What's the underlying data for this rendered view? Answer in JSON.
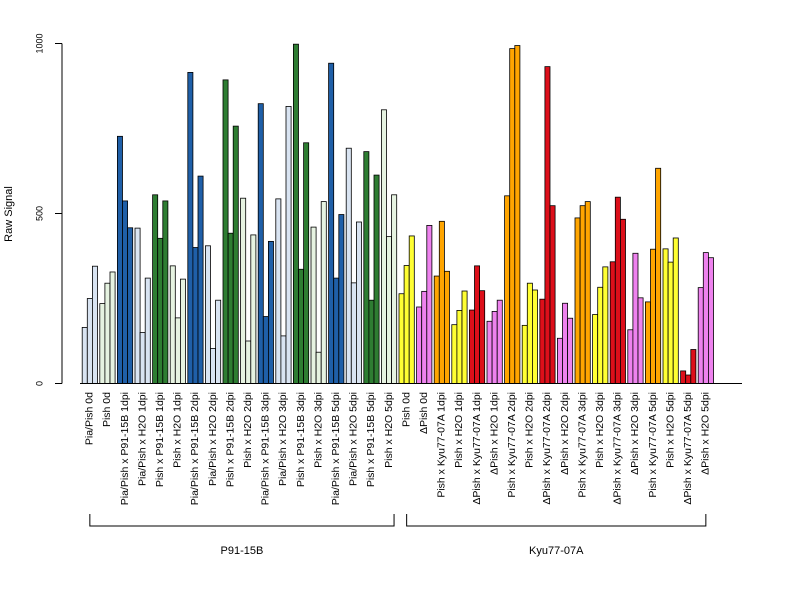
{
  "chart_data": {
    "type": "bar",
    "ylabel": "Raw Signal",
    "ylim": [
      0,
      1000
    ],
    "yticks": [
      "0",
      "500",
      "1000"
    ],
    "palette": {
      "lightblue": "#d9e4f2",
      "darkblue": "#1f5fa8",
      "lightgreen": "#e6f3e1",
      "darkgreen": "#2e7d32",
      "yellow": "#ffff33",
      "violet": "#ee82ee",
      "orange": "#ffa500",
      "red": "#dd0f1a"
    },
    "groups": [
      {
        "label": "Pia/Pish 0d",
        "color": "lightblue",
        "values": [
          165,
          250,
          345
        ]
      },
      {
        "label": "Pish 0d",
        "color": "lightgreen",
        "values": [
          235,
          295,
          328
        ]
      },
      {
        "label": "Pia/Pish x P91-15B 1dpi",
        "color": "darkblue",
        "values": [
          727,
          537,
          458
        ]
      },
      {
        "label": "Pia/Pish x H2O 1dpi",
        "color": "lightblue",
        "values": [
          457,
          150,
          310
        ]
      },
      {
        "label": "Pish x P91-15B 1dpi",
        "color": "darkgreen",
        "values": [
          555,
          427,
          537
        ]
      },
      {
        "label": "Pish x H2O 1dpi",
        "color": "lightgreen",
        "values": [
          346,
          193,
          307
        ]
      },
      {
        "label": "Pia/Pish x P91-15B 2dpi",
        "color": "darkblue",
        "values": [
          915,
          400,
          610
        ]
      },
      {
        "label": "Pia/Pish x H2O 2dpi",
        "color": "lightblue",
        "values": [
          405,
          103,
          245
        ]
      },
      {
        "label": "Pish x P91-15B 2dpi",
        "color": "darkgreen",
        "values": [
          893,
          442,
          757
        ]
      },
      {
        "label": "Pish x H2O 2dpi",
        "color": "lightgreen",
        "values": [
          545,
          125,
          437
        ]
      },
      {
        "label": "Pia/Pish x P91-15B 3dpi",
        "color": "darkblue",
        "values": [
          823,
          197,
          418
        ]
      },
      {
        "label": "Pia/Pish x H2O 3dpi",
        "color": "lightblue",
        "values": [
          543,
          140,
          815
        ]
      },
      {
        "label": "Pish x P91-15B 3dpi",
        "color": "darkgreen",
        "values": [
          998,
          336,
          708
        ]
      },
      {
        "label": "Pish x H2O 3dpi",
        "color": "lightgreen",
        "values": [
          460,
          92,
          535
        ]
      },
      {
        "label": "Pia/Pish x P91-15B 5dpi",
        "color": "darkblue",
        "values": [
          942,
          310,
          497
        ]
      },
      {
        "label": "Pia/Pish x H2O 5dpi",
        "color": "lightblue",
        "values": [
          692,
          296,
          475
        ]
      },
      {
        "label": "Pish x P91-15B 5dpi",
        "color": "darkgreen",
        "values": [
          682,
          245,
          613
        ]
      },
      {
        "label": "Pish x H2O 5dpi",
        "color": "lightgreen",
        "values": [
          805,
          432,
          555
        ]
      },
      {
        "label": "Pish 0d",
        "color": "yellow",
        "values": [
          264,
          347,
          434
        ]
      },
      {
        "label": "ΔPish 0d",
        "color": "violet",
        "values": [
          225,
          271,
          465
        ]
      },
      {
        "label": "Pish x Kyu77-07A 1dpi",
        "color": "orange",
        "values": [
          316,
          477,
          330
        ]
      },
      {
        "label": "Pish x H2O 1dpi",
        "color": "yellow",
        "values": [
          173,
          215,
          272
        ]
      },
      {
        "label": "ΔPish x Kyu77-07A 1dpi",
        "color": "red",
        "values": [
          216,
          346,
          273
        ]
      },
      {
        "label": "ΔPish x H2O 1dpi",
        "color": "violet",
        "values": [
          183,
          212,
          245
        ]
      },
      {
        "label": "Pish x Kyu77-07A 2dpi",
        "color": "orange",
        "values": [
          552,
          985,
          994
        ]
      },
      {
        "label": "Pish x H2O 2dpi",
        "color": "yellow",
        "values": [
          171,
          295,
          275
        ]
      },
      {
        "label": "ΔPish x Kyu77-07A 2dpi",
        "color": "red",
        "values": [
          248,
          932,
          523
        ]
      },
      {
        "label": "ΔPish x H2O 2dpi",
        "color": "violet",
        "values": [
          133,
          236,
          192
        ]
      },
      {
        "label": "Pish x Kyu77-07A 3dpi",
        "color": "orange",
        "values": [
          487,
          523,
          535
        ]
      },
      {
        "label": "Pish x H2O 3dpi",
        "color": "yellow",
        "values": [
          203,
          283,
          343
        ]
      },
      {
        "label": "ΔPish x Kyu77-07A 3dpi",
        "color": "red",
        "values": [
          358,
          548,
          483
        ]
      },
      {
        "label": "ΔPish x H2O 3dpi",
        "color": "violet",
        "values": [
          158,
          383,
          252
        ]
      },
      {
        "label": "Pish x Kyu77-07A 5dpi",
        "color": "orange",
        "values": [
          240,
          395,
          633
        ]
      },
      {
        "label": "Pish x H2O 5dpi",
        "color": "yellow",
        "values": [
          396,
          357,
          428
        ]
      },
      {
        "label": "ΔPish x Kyu77-07A 5dpi",
        "color": "red",
        "values": [
          37,
          25,
          100
        ]
      },
      {
        "label": "ΔPish x H2O 5dpi",
        "color": "violet",
        "values": [
          282,
          385,
          370
        ]
      }
    ],
    "sections": [
      {
        "label": "P91-15B",
        "first": 0,
        "last": 17
      },
      {
        "label": "Kyu77-07A",
        "first": 18,
        "last": 35
      }
    ]
  }
}
